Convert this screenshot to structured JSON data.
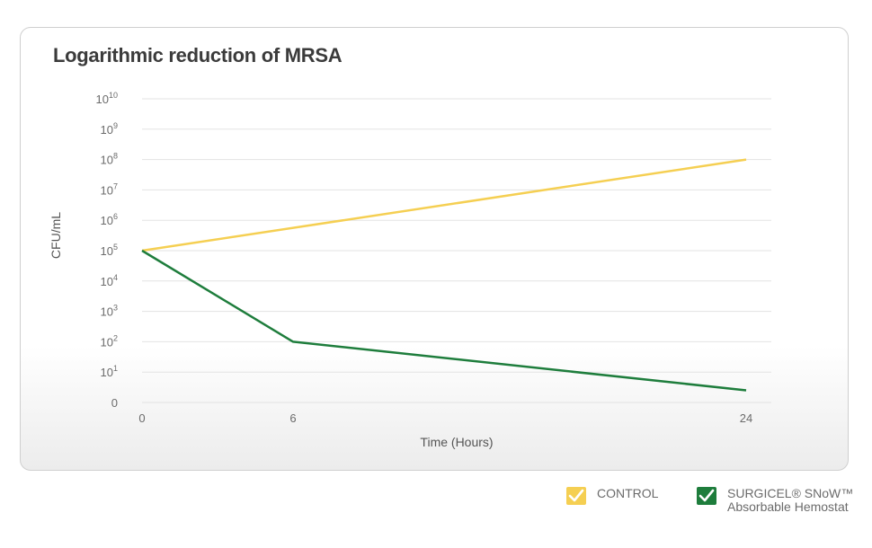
{
  "chart_data": {
    "type": "line",
    "title": "Logarithmic reduction of MRSA",
    "xlabel": "Time (Hours)",
    "ylabel": "CFU/mL",
    "yscale": "log",
    "x_ticks": [
      0,
      6,
      24
    ],
    "x_tick_labels": [
      "0",
      "6",
      "24"
    ],
    "xlim": [
      0,
      24
    ],
    "y_ticks": [
      0,
      1,
      2,
      3,
      4,
      5,
      6,
      7,
      8,
      9,
      10
    ],
    "y_tick_labels": [
      {
        "base": "0",
        "exp": ""
      },
      {
        "base": "10",
        "exp": "1"
      },
      {
        "base": "10",
        "exp": "2"
      },
      {
        "base": "10",
        "exp": "3"
      },
      {
        "base": "10",
        "exp": "4"
      },
      {
        "base": "10",
        "exp": "5"
      },
      {
        "base": "10",
        "exp": "6"
      },
      {
        "base": "10",
        "exp": "7"
      },
      {
        "base": "10",
        "exp": "8"
      },
      {
        "base": "10",
        "exp": "9"
      },
      {
        "base": "10",
        "exp": "10"
      }
    ],
    "ylim_log10": [
      0,
      10
    ],
    "grid": true,
    "legend_position": "bottom-right",
    "series": [
      {
        "name": "CONTROL",
        "color": "#f5cf52",
        "x": [
          0,
          24
        ],
        "y_log10": [
          5,
          8
        ]
      },
      {
        "name": "SURGICEL® SNoW™ Absorbable Hemostat",
        "color": "#1e7d3c",
        "x": [
          0,
          6,
          24
        ],
        "y_log10": [
          5,
          2,
          0.4
        ]
      }
    ]
  },
  "legend": {
    "items": [
      {
        "line1": "CONTROL",
        "line2": "",
        "color": "#f5cf52",
        "icon": "checkmark-icon"
      },
      {
        "line1": "SURGICEL® SNoW™",
        "line2": "Absorbable Hemostat",
        "color": "#1e7d3c",
        "icon": "checkmark-icon"
      }
    ]
  }
}
